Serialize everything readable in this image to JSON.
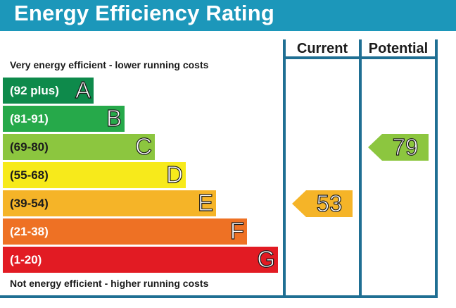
{
  "title": "Energy Efficiency Rating",
  "columns": {
    "current": "Current",
    "potential": "Potential"
  },
  "top_note": "Very energy efficient - lower running costs",
  "bottom_note": "Not energy efficient - higher running costs",
  "chart_data": {
    "type": "bar",
    "title": "Energy Efficiency Rating",
    "bands": [
      {
        "letter": "A",
        "range": "(92 plus)",
        "color": "#0e8a4b"
      },
      {
        "letter": "B",
        "range": "(81-91)",
        "color": "#26a94a"
      },
      {
        "letter": "C",
        "range": "(69-80)",
        "color": "#8cc63f"
      },
      {
        "letter": "D",
        "range": "(55-68)",
        "color": "#f7ea1b"
      },
      {
        "letter": "E",
        "range": "(39-54)",
        "color": "#f5b428"
      },
      {
        "letter": "F",
        "range": "(21-38)",
        "color": "#ee7124"
      },
      {
        "letter": "G",
        "range": "(1-20)",
        "color": "#e21b23"
      }
    ],
    "current": {
      "value": 53,
      "band": "E",
      "color": "#f5b428"
    },
    "potential": {
      "value": 79,
      "band": "C",
      "color": "#8cc63f"
    }
  }
}
